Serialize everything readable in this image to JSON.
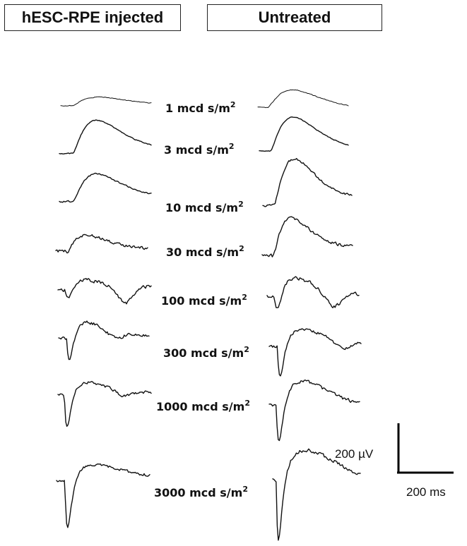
{
  "headers": {
    "left": "hESC-RPE injected",
    "right": "Untreated"
  },
  "unit": "mcd s/m",
  "unit_superscript": "2",
  "intensities": [
    "1",
    "3",
    "10",
    "30",
    "100",
    "300",
    "1000",
    "3000"
  ],
  "scale_bar": {
    "voltage": "200 µV",
    "time": "200 ms"
  }
}
